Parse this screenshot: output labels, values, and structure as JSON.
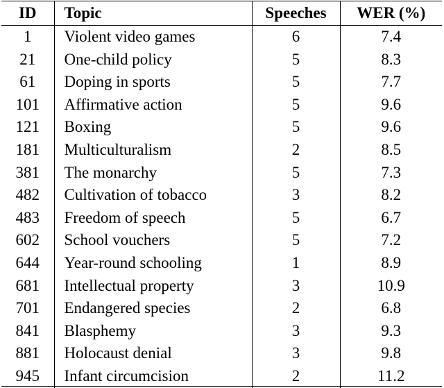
{
  "table": {
    "headers": {
      "id": "ID",
      "topic": "Topic",
      "speeches": "Speeches",
      "wer": "WER (%)"
    },
    "rows": [
      {
        "id": "1",
        "topic": "Violent video games",
        "speeches": "6",
        "wer": "7.4"
      },
      {
        "id": "21",
        "topic": "One-child policy",
        "speeches": "5",
        "wer": "8.3"
      },
      {
        "id": "61",
        "topic": "Doping in sports",
        "speeches": "5",
        "wer": "7.7"
      },
      {
        "id": "101",
        "topic": "Affirmative action",
        "speeches": "5",
        "wer": "9.6"
      },
      {
        "id": "121",
        "topic": "Boxing",
        "speeches": "5",
        "wer": "9.6"
      },
      {
        "id": "181",
        "topic": "Multiculturalism",
        "speeches": "2",
        "wer": "8.5"
      },
      {
        "id": "381",
        "topic": "The monarchy",
        "speeches": "5",
        "wer": "7.3"
      },
      {
        "id": "482",
        "topic": "Cultivation of tobacco",
        "speeches": "3",
        "wer": "8.2"
      },
      {
        "id": "483",
        "topic": "Freedom of speech",
        "speeches": "5",
        "wer": "6.7"
      },
      {
        "id": "602",
        "topic": "School vouchers",
        "speeches": "5",
        "wer": "7.2"
      },
      {
        "id": "644",
        "topic": "Year-round schooling",
        "speeches": "1",
        "wer": "8.9"
      },
      {
        "id": "681",
        "topic": "Intellectual property",
        "speeches": "3",
        "wer": "10.9"
      },
      {
        "id": "701",
        "topic": "Endangered species",
        "speeches": "2",
        "wer": "6.8"
      },
      {
        "id": "841",
        "topic": "Blasphemy",
        "speeches": "3",
        "wer": "9.3"
      },
      {
        "id": "881",
        "topic": "Holocaust denial",
        "speeches": "3",
        "wer": "9.8"
      },
      {
        "id": "945",
        "topic": "Infant circumcision",
        "speeches": "2",
        "wer": "11.2"
      }
    ]
  }
}
